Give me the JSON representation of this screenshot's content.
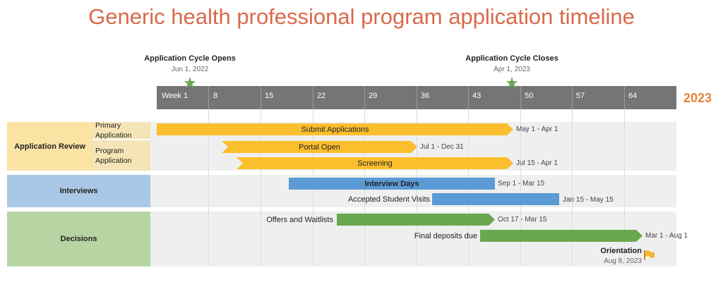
{
  "title": "Generic health professional program application timeline",
  "milestones_top": [
    {
      "title": "Application Cycle Opens",
      "date": "Jun 1, 2022"
    },
    {
      "title": "Application Cycle Closes",
      "date": "Apr 1, 2023"
    }
  ],
  "axis": {
    "ticks": [
      "Week 1",
      "8",
      "15",
      "22",
      "29",
      "36",
      "43",
      "50",
      "57",
      "64"
    ],
    "year": "2023"
  },
  "colors": {
    "title": "#d9694a",
    "application_review": "#fbbf2d",
    "interviews": "#5b9bd5",
    "decisions": "#6aa84f",
    "year": "#e8843a",
    "milestone_star": "#6aa84f",
    "flag": "#f2b632"
  },
  "swimlanes": {
    "application_review": {
      "label": "Application Review",
      "sublanes": [
        "Primary Application",
        "Program Application"
      ]
    },
    "interviews": {
      "label": "Interviews"
    },
    "decisions": {
      "label": "Decisions"
    }
  },
  "tasks": {
    "submit": {
      "label": "Submit Applications",
      "range": "May 1 - Apr 1"
    },
    "portal": {
      "label": "Portal Open",
      "range": "Jul 1 - Dec 31"
    },
    "screening": {
      "label": "Screening",
      "range": "Jul 15 - Apr 1"
    },
    "interview_days": {
      "label": "Interview Days",
      "range": "Sep 1 - Mar 15"
    },
    "visits": {
      "label": "Accepted Student Visits",
      "range": "Jan 15 - May 15"
    },
    "offers": {
      "label": "Offers and Waitlists",
      "range": "Oct 17 - Mar 15"
    },
    "deposits": {
      "label": "Final deposits due",
      "range": "Mar 1 - Aug 1"
    }
  },
  "orientation": {
    "title": "Orientation",
    "date": "Aug 8, 2023"
  }
}
